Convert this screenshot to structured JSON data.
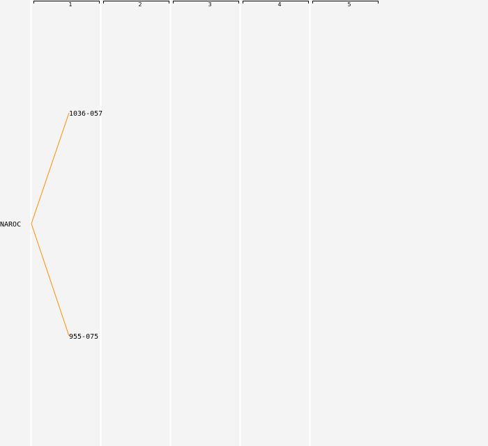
{
  "columns": [
    "1",
    "2",
    "3",
    "4",
    "5"
  ],
  "tree": {
    "root": "NAROC",
    "children": [
      "1036-057",
      "955-075"
    ]
  },
  "colors": {
    "background": "#f4f4f4",
    "divider": "#ffffff",
    "edge": "#ff8c00",
    "text": "#000000"
  }
}
